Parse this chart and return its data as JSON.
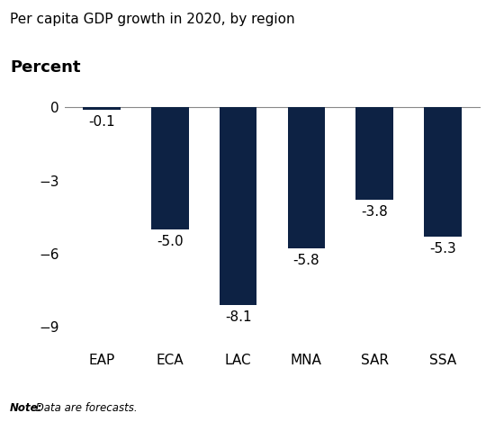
{
  "title": "Per capita GDP growth in 2020, by region",
  "percent_label": "Percent",
  "note_bold": "Note:",
  "note_italic": " Data are forecasts.",
  "categories": [
    "EAP",
    "ECA",
    "LAC",
    "MNA",
    "SAR",
    "SSA"
  ],
  "values": [
    -0.1,
    -5.0,
    -8.1,
    -5.8,
    -3.8,
    -5.3
  ],
  "bar_color": "#0d2244",
  "bar_width": 0.55,
  "ylim": [
    -9.8,
    0.6
  ],
  "yticks": [
    0,
    -3,
    -6,
    -9
  ],
  "label_offsets": [
    0.22,
    0.22,
    0.22,
    0.22,
    0.22,
    0.22
  ],
  "background_color": "#ffffff",
  "title_fontsize": 11,
  "percent_fontsize": 13,
  "tick_fontsize": 11,
  "label_fontsize": 11,
  "note_fontsize": 8.5
}
